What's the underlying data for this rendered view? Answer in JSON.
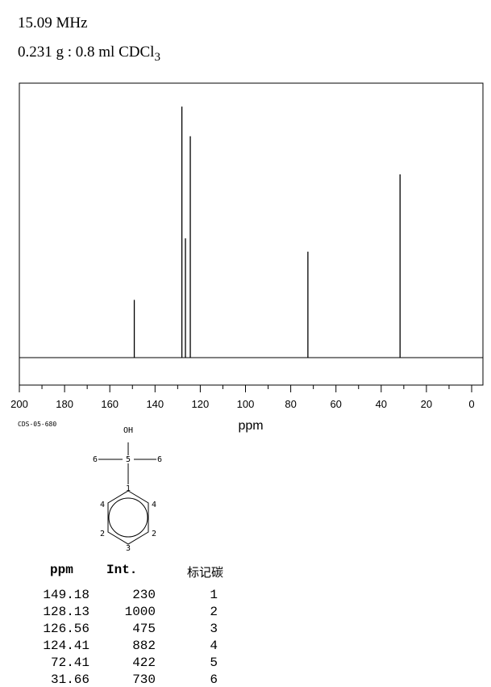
{
  "header": {
    "frequency": "15.09 MHz",
    "sample_main": "0.231 g : 0.8 ml CDCl",
    "sample_sub": "3"
  },
  "spectrum_id": "CDS-05-680",
  "chart_data": {
    "type": "nmr_spectrum",
    "xlabel": "ppm",
    "xlim": [
      200,
      0
    ],
    "xticks": [
      200,
      180,
      160,
      140,
      120,
      100,
      80,
      60,
      40,
      20,
      0
    ],
    "ylim": [
      0,
      1000
    ],
    "peaks": [
      {
        "ppm": 149.18,
        "intensity": 230
      },
      {
        "ppm": 128.13,
        "intensity": 1000
      },
      {
        "ppm": 126.56,
        "intensity": 475
      },
      {
        "ppm": 124.41,
        "intensity": 882
      },
      {
        "ppm": 72.41,
        "intensity": 422
      },
      {
        "ppm": 31.66,
        "intensity": 730
      }
    ]
  },
  "structure": {
    "oh_label": "OH",
    "atom_labels": [
      "6",
      "5",
      "6",
      "1",
      "4",
      "4",
      "2",
      "2",
      "3"
    ]
  },
  "table": {
    "col_ppm": "ppm",
    "col_int": "Int.",
    "col_carbon": "标记碳",
    "rows": [
      {
        "ppm": "149.18",
        "int": "230",
        "carbon": "1"
      },
      {
        "ppm": "128.13",
        "int": "1000",
        "carbon": "2"
      },
      {
        "ppm": "126.56",
        "int": "475",
        "carbon": "3"
      },
      {
        "ppm": "124.41",
        "int": "882",
        "carbon": "4"
      },
      {
        "ppm": "72.41",
        "int": "422",
        "carbon": "5"
      },
      {
        "ppm": "31.66",
        "int": "730",
        "carbon": "6"
      }
    ]
  }
}
